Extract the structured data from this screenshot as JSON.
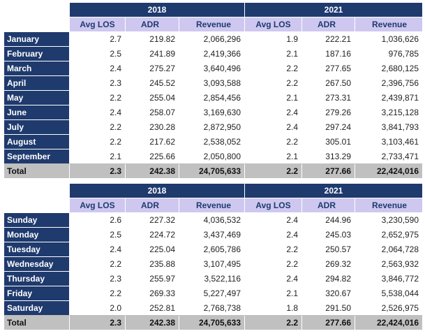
{
  "columns": [
    "Avg LOS",
    "ADR",
    "Revenue"
  ],
  "tables": [
    {
      "years": [
        "2018",
        "2021"
      ],
      "rows": [
        {
          "label": "January",
          "y1": [
            "2.7",
            "219.82",
            "2,066,296"
          ],
          "y2": [
            "1.9",
            "222.21",
            "1,036,626"
          ]
        },
        {
          "label": "February",
          "y1": [
            "2.5",
            "241.89",
            "2,419,366"
          ],
          "y2": [
            "2.1",
            "187.16",
            "976,785"
          ]
        },
        {
          "label": "March",
          "y1": [
            "2.4",
            "275.27",
            "3,640,496"
          ],
          "y2": [
            "2.2",
            "277.65",
            "2,680,125"
          ]
        },
        {
          "label": "April",
          "y1": [
            "2.3",
            "245.52",
            "3,093,588"
          ],
          "y2": [
            "2.2",
            "267.50",
            "2,396,756"
          ]
        },
        {
          "label": "May",
          "y1": [
            "2.2",
            "255.04",
            "2,854,456"
          ],
          "y2": [
            "2.1",
            "273.31",
            "2,439,871"
          ]
        },
        {
          "label": "June",
          "y1": [
            "2.4",
            "258.07",
            "3,169,630"
          ],
          "y2": [
            "2.4",
            "279.26",
            "3,215,128"
          ]
        },
        {
          "label": "July",
          "y1": [
            "2.2",
            "230.28",
            "2,872,950"
          ],
          "y2": [
            "2.4",
            "297.24",
            "3,841,793"
          ]
        },
        {
          "label": "August",
          "y1": [
            "2.2",
            "217.62",
            "2,538,052"
          ],
          "y2": [
            "2.2",
            "305.01",
            "3,103,461"
          ]
        },
        {
          "label": "September",
          "y1": [
            "2.1",
            "225.66",
            "2,050,800"
          ],
          "y2": [
            "2.1",
            "313.29",
            "2,733,471"
          ]
        }
      ],
      "total": {
        "label": "Total",
        "y1": [
          "2.3",
          "242.38",
          "24,705,633"
        ],
        "y2": [
          "2.2",
          "277.66",
          "22,424,016"
        ]
      }
    },
    {
      "years": [
        "2018",
        "2021"
      ],
      "rows": [
        {
          "label": "Sunday",
          "y1": [
            "2.6",
            "227.32",
            "4,036,532"
          ],
          "y2": [
            "2.4",
            "244.96",
            "3,230,590"
          ]
        },
        {
          "label": "Monday",
          "y1": [
            "2.5",
            "224.72",
            "3,437,469"
          ],
          "y2": [
            "2.4",
            "245.03",
            "2,652,975"
          ]
        },
        {
          "label": "Tuesday",
          "y1": [
            "2.4",
            "225.04",
            "2,605,786"
          ],
          "y2": [
            "2.2",
            "250.57",
            "2,064,728"
          ]
        },
        {
          "label": "Wednesday",
          "y1": [
            "2.2",
            "235.88",
            "3,107,495"
          ],
          "y2": [
            "2.2",
            "269.32",
            "2,563,932"
          ]
        },
        {
          "label": "Thursday",
          "y1": [
            "2.3",
            "255.97",
            "3,522,116"
          ],
          "y2": [
            "2.4",
            "294.82",
            "3,846,772"
          ]
        },
        {
          "label": "Friday",
          "y1": [
            "2.2",
            "269.33",
            "5,227,497"
          ],
          "y2": [
            "2.1",
            "320.67",
            "5,538,044"
          ]
        },
        {
          "label": "Saturday",
          "y1": [
            "2.0",
            "252.81",
            "2,768,738"
          ],
          "y2": [
            "1.8",
            "291.50",
            "2,526,975"
          ]
        }
      ],
      "total": {
        "label": "Total",
        "y1": [
          "2.3",
          "242.38",
          "24,705,633"
        ],
        "y2": [
          "2.2",
          "277.66",
          "22,424,016"
        ]
      }
    }
  ],
  "colors": {
    "header": "#1f3a6d",
    "subheader": "#cec8f0",
    "total": "#c0c0c0"
  }
}
